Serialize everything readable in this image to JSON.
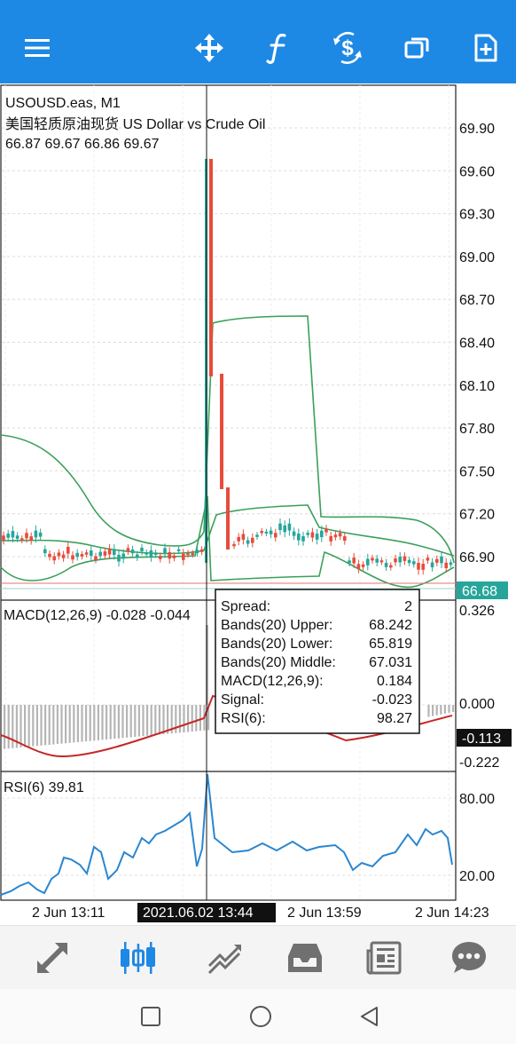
{
  "colors": {
    "accent": "#1e88e5",
    "bull": "#26a69a",
    "bear": "#e74c3c",
    "bands": "#3aa05a",
    "macd_signal": "#c62828",
    "rsi": "#2a86d0",
    "histogram": "#b5b5b5",
    "price_badge": "#26a69a"
  },
  "toolbar": {
    "icons": [
      "menu-icon",
      "crosshair-icon",
      "indicators-icon",
      "trade-icon",
      "windows-icon",
      "new-order-icon"
    ]
  },
  "chart": {
    "symbol_line": "USOUSD.eas, M1",
    "description": "美国轻质原油现货 US Dollar vs Crude Oil",
    "ohlc": "66.87 69.67 66.86 69.67",
    "price_ticks": [
      "69.90",
      "69.60",
      "69.30",
      "69.00",
      "68.70",
      "68.40",
      "68.10",
      "67.80",
      "67.50",
      "67.20",
      "66.90"
    ],
    "current_price": "66.68",
    "macd_label": "MACD(12,26,9) -0.028 -0.044",
    "macd_ticks": [
      "0.326",
      "0.000",
      "-0.222"
    ],
    "macd_current": "-0.113",
    "rsi_label": "RSI(6) 39.81",
    "rsi_ticks": [
      "80.00",
      "20.00"
    ],
    "time_labels": [
      "2 Jun 13:11",
      "2 Jun 13:59",
      "2 Jun 14:23"
    ],
    "crosshair_time": "2021.06.02 13:44"
  },
  "tooltip": {
    "rows": [
      {
        "label": "Spread:",
        "value": "2"
      },
      {
        "label": "Bands(20) Upper:",
        "value": "68.242"
      },
      {
        "label": "Bands(20) Lower:",
        "value": "65.819"
      },
      {
        "label": "Bands(20) Middle:",
        "value": "67.031"
      },
      {
        "label": "MACD(12,26,9):",
        "value": "0.184"
      },
      {
        "label": "Signal:",
        "value": "-0.023"
      },
      {
        "label": "RSI(6):",
        "value": "98.27"
      }
    ]
  },
  "bottom_nav": {
    "items": [
      {
        "name": "quotes",
        "active": false
      },
      {
        "name": "chart",
        "active": true
      },
      {
        "name": "trade",
        "active": false
      },
      {
        "name": "history",
        "active": false
      },
      {
        "name": "news",
        "active": false
      },
      {
        "name": "messages",
        "active": false
      }
    ]
  },
  "chart_data": {
    "type": "candlestick",
    "title": "USOUSD.eas, M1",
    "price_range": [
      66.75,
      70.05
    ],
    "spike_candle": {
      "time": "2021.06.02 13:44",
      "open": 66.87,
      "high": 69.67,
      "low": 66.86,
      "close": 69.67
    },
    "bollinger": {
      "period": 20,
      "upper": 68.242,
      "lower": 65.819,
      "middle": 67.031
    },
    "macd": {
      "params": "12,26,9",
      "value": 0.184,
      "signal": -0.023,
      "axis_range": [
        -0.222,
        0.326
      ]
    },
    "rsi": {
      "period": 6,
      "value": 98.27,
      "levels": [
        20,
        80
      ]
    }
  }
}
